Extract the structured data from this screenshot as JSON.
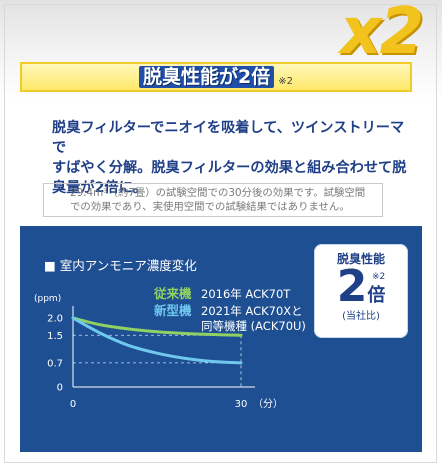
{
  "badge_x2": "x2",
  "headline": "脱臭性能が2倍",
  "headline_note": "※2",
  "description_lines": [
    "脱臭フィルターでニオイを吸着して、ツインストリーマで",
    "すばやく分解。脱臭フィルターの効果と組み合わせて脱",
    "臭量が2倍に。"
  ],
  "note_lines": [
    "29.4m³（約7畳）の試験空間での30分後の効果です。試験空間",
    "での効果であり、実使用空間での試験結果ではありません。"
  ],
  "side_badge": {
    "title": "脱臭性能",
    "value": "2",
    "unit": "倍",
    "note": "※2",
    "sub": "(当社比)"
  },
  "colors": {
    "panel": "#1e4f92",
    "old_model": "#8fd163",
    "new_model": "#6fc8ee",
    "headline_bg": "#1f4fa8",
    "x2": "#f2c21d"
  },
  "chart_data": {
    "type": "line",
    "title": "■ 室内アンモニア濃度変化",
    "ylabel": "(ppm)",
    "xlabel": "",
    "x_unit_label": "（分）",
    "xlim": [
      0,
      30
    ],
    "ylim": [
      0,
      2.0
    ],
    "x_ticks": [
      "0",
      "30"
    ],
    "y_ticks": [
      "2.0",
      "1.5",
      "0.7",
      "0"
    ],
    "y_tick_values": [
      2.0,
      1.5,
      0.7,
      0
    ],
    "grid": false,
    "series": [
      {
        "name": "従来機",
        "model": "2016年 ACK70T",
        "color": "#8fd163",
        "x": [
          0,
          5,
          10,
          15,
          20,
          25,
          30
        ],
        "y": [
          2.0,
          1.8,
          1.68,
          1.6,
          1.55,
          1.52,
          1.5
        ]
      },
      {
        "name": "新型機",
        "model_lines": [
          "2021年 ACK70Xと",
          "同等機種 (ACK70U)"
        ],
        "color": "#6fc8ee",
        "x": [
          0,
          5,
          10,
          15,
          20,
          25,
          30
        ],
        "y": [
          2.0,
          1.55,
          1.2,
          0.98,
          0.83,
          0.74,
          0.7
        ]
      }
    ],
    "reference_lines": [
      1.5,
      0.7
    ]
  }
}
